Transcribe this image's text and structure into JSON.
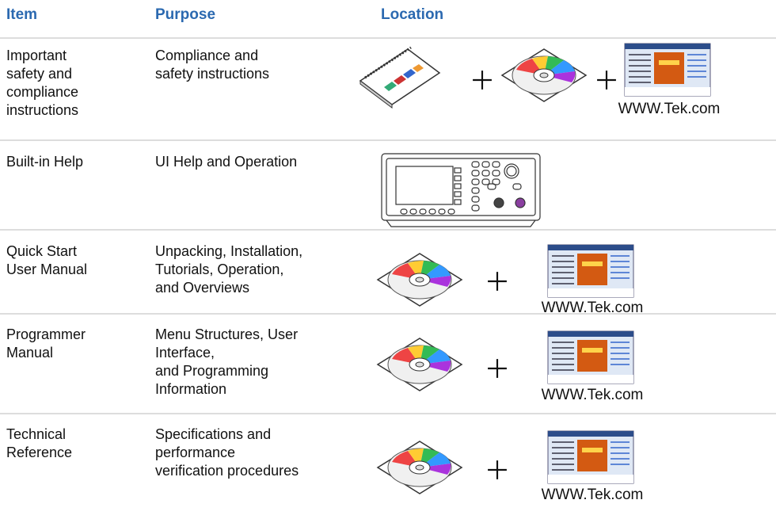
{
  "header": {
    "item": "Item",
    "purpose": "Purpose",
    "location": "Location"
  },
  "rows": [
    {
      "item": "Important\nsafety and\ncompliance\ninstructions",
      "purpose": "Compliance and\nsafety instructions",
      "location_caption": "WWW.Tek.com"
    },
    {
      "item": "Built-in Help",
      "purpose": "UI Help and Operation"
    },
    {
      "item": "Quick Start\nUser Manual",
      "purpose": "Unpacking, Installation,\nTutorials, Operation,\nand Overviews",
      "location_caption": "WWW.Tek.com"
    },
    {
      "item": "Programmer\nManual",
      "purpose": "Menu Structures, User\nInterface,\nand Programming\nInformation",
      "location_caption": "WWW.Tek.com"
    },
    {
      "item": "Technical\nReference",
      "purpose": "Specifications and\nperformance\nverification procedures",
      "location_caption": "WWW.Tek.com"
    }
  ]
}
